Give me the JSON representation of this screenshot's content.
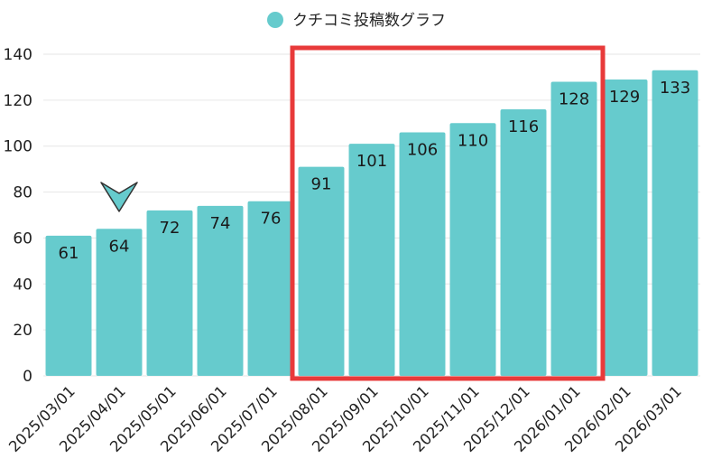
{
  "chart_data": {
    "type": "bar",
    "title": "",
    "xlabel": "",
    "ylabel": "",
    "ylim": [
      0,
      140
    ],
    "yticks": [
      0,
      20,
      40,
      60,
      80,
      100,
      120,
      140
    ],
    "grid": true,
    "legend_position": "top-center",
    "categories": [
      "2025/03/01",
      "2025/04/01",
      "2025/05/01",
      "2025/06/01",
      "2025/07/01",
      "2025/08/01",
      "2025/09/01",
      "2025/10/01",
      "2025/11/01",
      "2025/12/01",
      "2026/01/01",
      "2026/02/01",
      "2026/03/01"
    ],
    "series": [
      {
        "name": "クチコミ投稿数グラフ",
        "values": [
          61,
          64,
          72,
          74,
          76,
          91,
          101,
          106,
          110,
          116,
          128,
          129,
          133
        ]
      }
    ],
    "annotations": [
      {
        "type": "highlight-box",
        "from_category": "2025/08/01",
        "to_category": "2026/01/01",
        "color": "#e83a3a"
      },
      {
        "type": "marker-arrow",
        "category": "2025/04/01",
        "direction": "down"
      }
    ],
    "colors": {
      "bar": "#66cbcd",
      "grid": "#e6e6e6",
      "highlight": "#e83a3a",
      "marker": "#66cbcd",
      "marker_outline": "#333333"
    }
  }
}
